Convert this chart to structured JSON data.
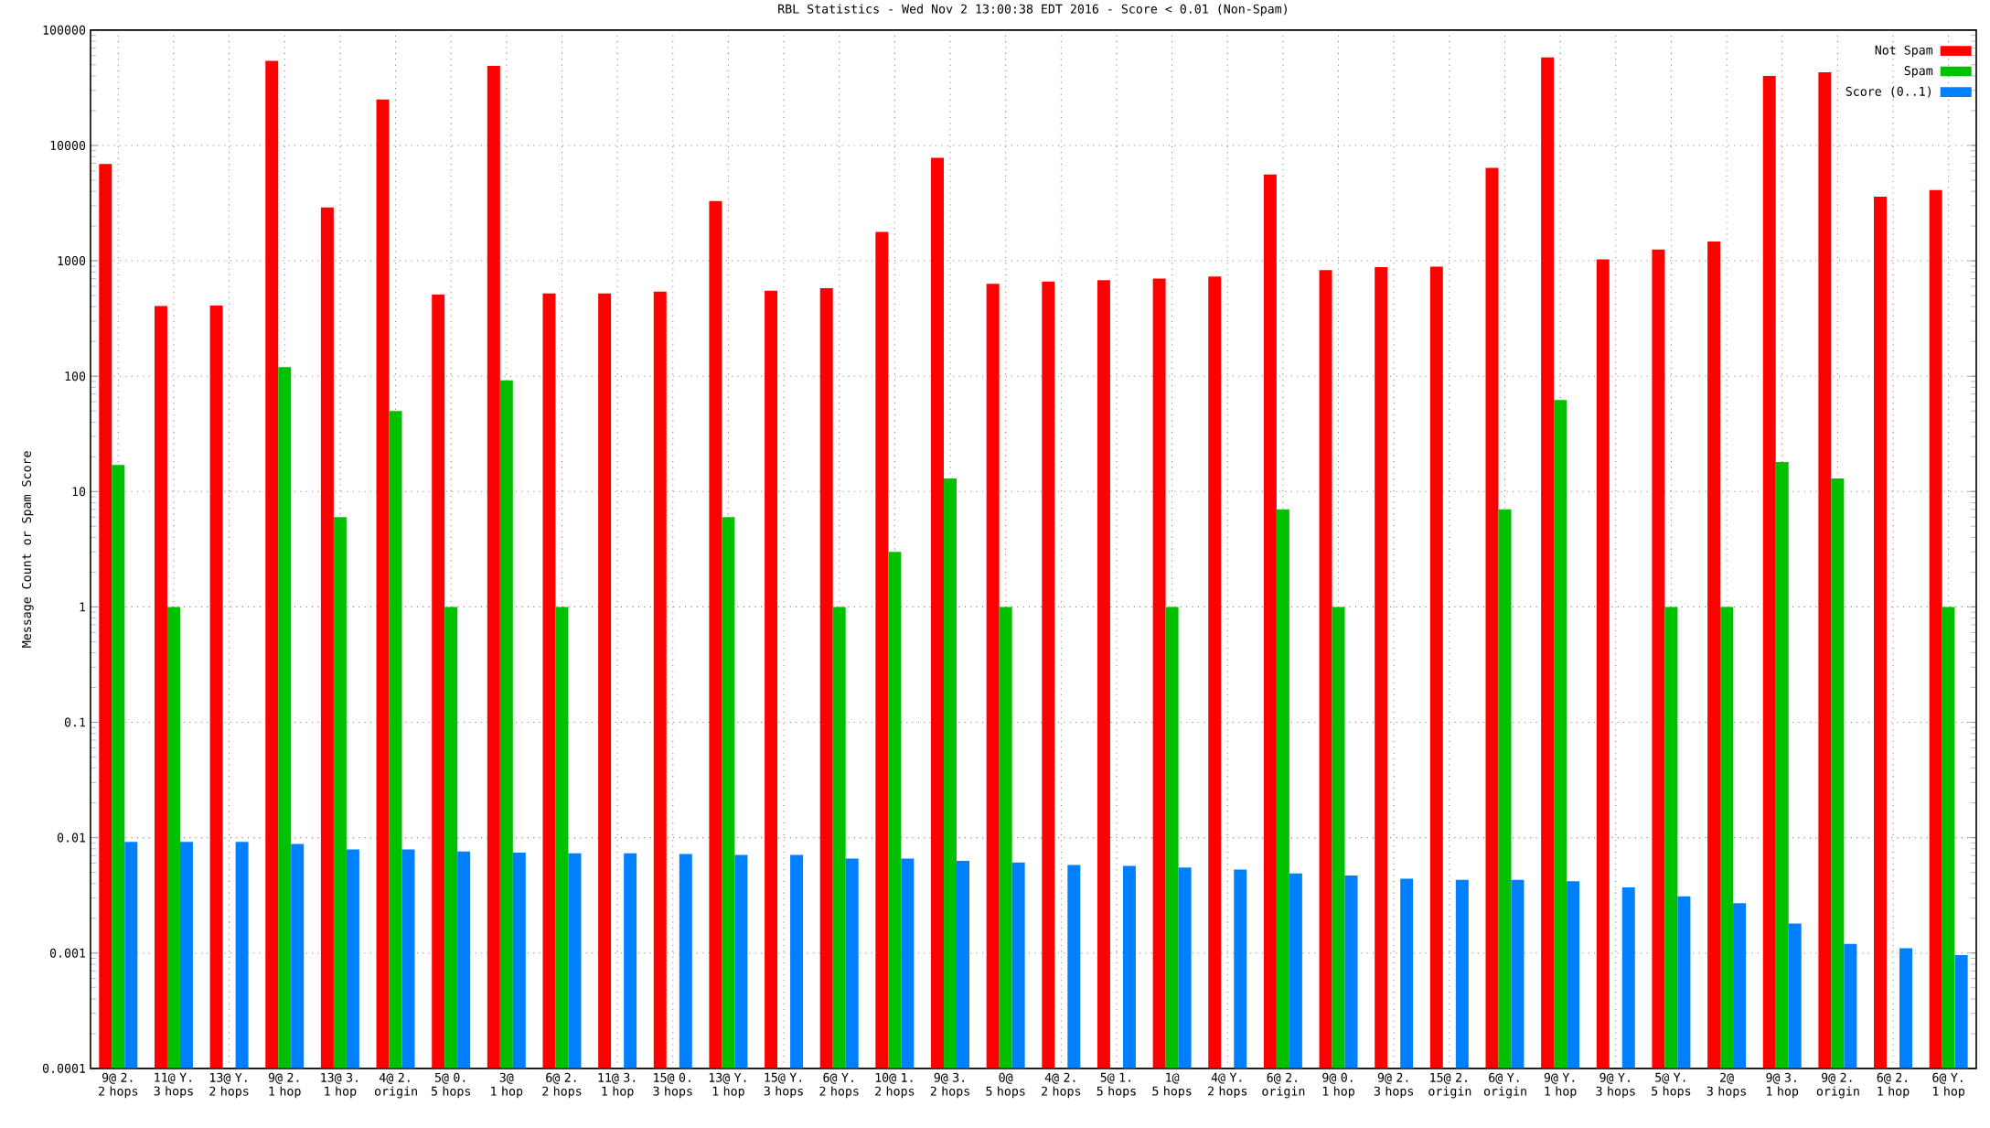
{
  "chart_data": {
    "type": "bar",
    "title": "RBL Statistics - Wed Nov  2 13:00:38 EDT 2016 - Score < 0.01 (Non-Spam)",
    "ylabel": "Message Count or Spam Score",
    "log": "y",
    "grid": true,
    "legend": "top right",
    "categories": [
      "9@ 2. 2 hops",
      "11@ Y. 3 hops",
      "13@ Y. 2 hops",
      "9@ 2. 1 hop",
      "13@ 3. 1 hop",
      "4@ 2. origin",
      "5@ 0. 5 hops",
      "3@ 1 hop",
      "6@ 2. 2 hops",
      "11@ 3. 1 hop",
      "15@ 0. 3 hops",
      "13@ Y. 1 hop",
      "15@ Y. 3 hops",
      "6@ Y. 2 hops",
      "10@ 1. 2 hops",
      "9@ 3. 2 hops",
      "0@ 5 hops",
      "4@ 2. 2 hops",
      "5@ 1. 5 hops",
      "1@ 5 hops",
      "4@ Y. 2 hops",
      "6@ 2. origin",
      "9@ 0. 1 hop",
      "9@ 2. 3 hops",
      "15@ 2. origin",
      "6@ Y. origin",
      "9@ Y. 1 hop",
      "9@ Y. 3 hops",
      "5@ Y. 5 hops",
      "2@ 3 hops",
      "9@ 3. 1 hop",
      "9@ 2. origin",
      "6@ 2. 1 hop",
      "6@ Y. 1 hop"
    ],
    "series": [
      {
        "name": "Not Spam",
        "color": "#ff0000",
        "values": [
          6900,
          405,
          410,
          54000,
          2900,
          25000,
          510,
          49000,
          520,
          520,
          540,
          3300,
          550,
          580,
          1780,
          7800,
          630,
          660,
          680,
          700,
          730,
          5600,
          830,
          880,
          890,
          6400,
          58000,
          1030,
          1250,
          1470,
          40000,
          43000,
          3600,
          4100
        ]
      },
      {
        "name": "Spam",
        "color": "#00c000",
        "values": [
          17,
          1,
          null,
          120,
          6,
          50,
          1,
          92,
          1,
          null,
          null,
          6,
          null,
          1,
          3,
          13,
          1,
          null,
          null,
          1,
          null,
          7,
          1,
          null,
          null,
          7,
          62,
          null,
          1,
          1,
          18,
          13,
          null,
          1
        ]
      },
      {
        "name": "Score (0..1)",
        "color": "#0080ff",
        "values": [
          0.0092,
          0.0092,
          0.0092,
          0.0088,
          0.0079,
          0.0079,
          0.0076,
          0.0074,
          0.0073,
          0.0073,
          0.0072,
          0.0071,
          0.0071,
          0.0066,
          0.0066,
          0.0063,
          0.0061,
          0.0058,
          0.0057,
          0.0055,
          0.0053,
          0.0049,
          0.0047,
          0.0044,
          0.0043,
          0.0043,
          0.0042,
          0.0037,
          0.0031,
          0.0027,
          0.0018,
          0.0012,
          0.0011,
          0.00096
        ]
      }
    ],
    "ylim": [
      0.0001,
      100000
    ],
    "yticks": [
      0.0001,
      0.001,
      0.01,
      0.1,
      1,
      10,
      100,
      1000,
      10000,
      100000
    ]
  }
}
